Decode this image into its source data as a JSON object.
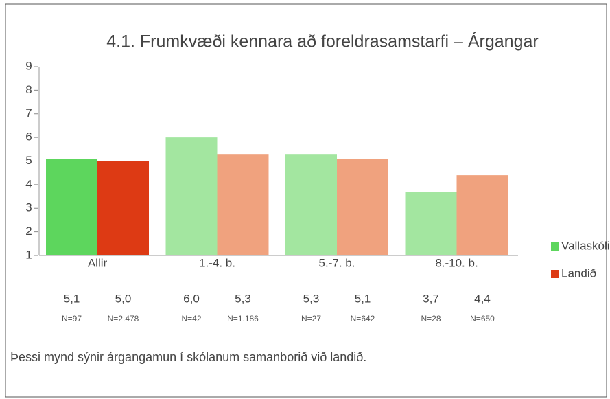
{
  "chart_data": {
    "type": "bar",
    "title": "4.1. Frumkvæði kennara að foreldrasamstarfi – Árgangar",
    "categories": [
      "Allir",
      "1.-4. b.",
      "5.-7. b.",
      "8.-10. b."
    ],
    "series": [
      {
        "name": "Vallaskóli",
        "color": "#5dd65d",
        "colors": [
          "#5dd65d",
          "#a3e6a0",
          "#a3e6a0",
          "#a3e6a0"
        ],
        "values": [
          5.1,
          6.0,
          5.3,
          3.7
        ],
        "value_labels": [
          "5,1",
          "6,0",
          "5,3",
          "3,7"
        ],
        "n_labels": [
          "N=97",
          "N=42",
          "N=27",
          "N=28"
        ]
      },
      {
        "name": "Landið",
        "color": "#dd3a14",
        "colors": [
          "#dd3a14",
          "#f0a27e",
          "#f0a27e",
          "#f0a27e"
        ],
        "values": [
          5.0,
          5.3,
          5.1,
          4.4
        ],
        "value_labels": [
          "5,0",
          "5,3",
          "5,1",
          "4,4"
        ],
        "n_labels": [
          "N=2.478",
          "N=1.186",
          "N=642",
          "N=650"
        ]
      }
    ],
    "ylim": [
      1,
      9
    ],
    "yticks": [
      1,
      2,
      3,
      4,
      5,
      6,
      7,
      8,
      9
    ],
    "footnote": "Þessi mynd sýnir árgangamun í skólanum samanborið við landið."
  }
}
